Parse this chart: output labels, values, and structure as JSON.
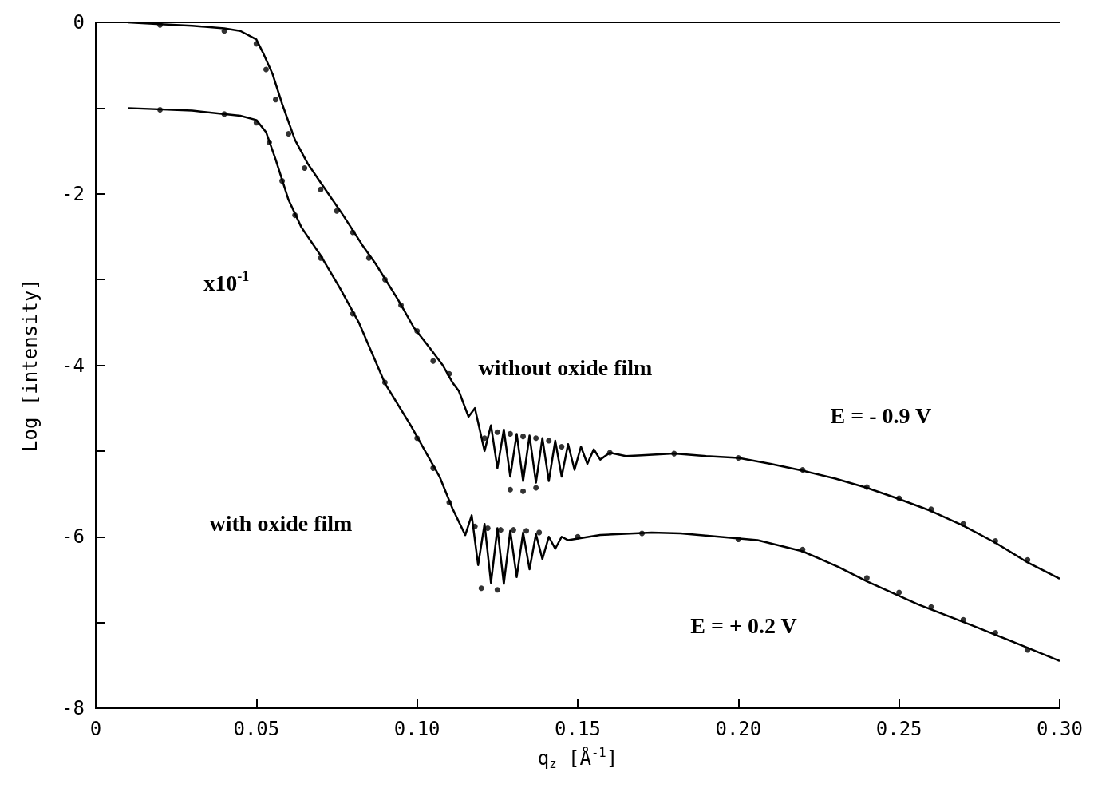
{
  "chart_data": {
    "type": "line",
    "xlabel": "q$_{z}$ [Å$^{-1}$]",
    "ylabel": "Log [intensity]",
    "xlim": [
      0,
      0.3
    ],
    "xticks": [
      0,
      0.05,
      {
        "value": 0.1,
        "label": "0.10"
      },
      0.15,
      {
        "value": 0.2,
        "label": "0.20"
      },
      0.25,
      {
        "value": 0.3,
        "label": "0.30"
      }
    ],
    "ylim": [
      -8,
      0
    ],
    "yticks": [
      -8,
      {
        "value": -7,
        "label": null
      },
      -6,
      {
        "value": -5,
        "label": null
      },
      -4,
      {
        "value": -3,
        "label": null
      },
      -2,
      {
        "value": -1,
        "label": null
      },
      0
    ],
    "grid": false,
    "line_style": "solid",
    "series": [
      {
        "marker": "none",
        "color": "#000000",
        "x": [
          0.01,
          0.02,
          0.03,
          0.04,
          0.045,
          0.05,
          0.052,
          0.055,
          0.058,
          0.062,
          0.066,
          0.07,
          0.077,
          0.083,
          0.087,
          0.094,
          0.099,
          0.104,
          0.108,
          0.111,
          0.113,
          0.116,
          0.118,
          0.121,
          0.123,
          0.125,
          0.127,
          0.129,
          0.131,
          0.133,
          0.135,
          0.137,
          0.139,
          0.141,
          0.143,
          0.145,
          0.147,
          0.149,
          0.151,
          0.153,
          0.155,
          0.157,
          0.16,
          0.165,
          0.17,
          0.18,
          0.19,
          0.2,
          0.21,
          0.22,
          0.23,
          0.24,
          0.25,
          0.26,
          0.27,
          0.28,
          0.29,
          0.3
        ],
        "values": [
          0,
          -0.02,
          -0.04,
          -0.07,
          -0.1,
          -0.2,
          -0.35,
          -0.6,
          -0.95,
          -1.37,
          -1.65,
          -1.87,
          -2.25,
          -2.6,
          -2.81,
          -3.23,
          -3.56,
          -3.8,
          -4.0,
          -4.2,
          -4.3,
          -4.6,
          -4.5,
          -5.0,
          -4.7,
          -5.2,
          -4.75,
          -5.3,
          -4.8,
          -5.35,
          -4.82,
          -5.37,
          -4.85,
          -5.35,
          -4.88,
          -5.3,
          -4.92,
          -5.22,
          -4.95,
          -5.15,
          -4.98,
          -5.1,
          -5.02,
          -5.06,
          -5.05,
          -5.03,
          -5.06,
          -5.08,
          -5.15,
          -5.23,
          -5.32,
          -5.43,
          -5.56,
          -5.7,
          -5.87,
          -6.07,
          -6.3,
          -6.49
        ]
      },
      {
        "type": "scatter",
        "marker": "circle",
        "color": "#000000",
        "x": [
          0.02,
          0.04,
          0.05,
          0.053,
          0.056,
          0.06,
          0.065,
          0.07,
          0.075,
          0.08,
          0.085,
          0.09,
          0.095,
          0.1,
          0.105,
          0.11,
          0.121,
          0.125,
          0.129,
          0.133,
          0.137,
          0.141,
          0.129,
          0.133,
          0.137,
          0.145,
          0.16,
          0.18,
          0.2,
          0.22,
          0.24,
          0.25,
          0.26,
          0.27,
          0.28,
          0.29
        ],
        "values": [
          -0.03,
          -0.1,
          -0.25,
          -0.55,
          -0.9,
          -1.3,
          -1.7,
          -1.95,
          -2.2,
          -2.45,
          -2.75,
          -3.0,
          -3.3,
          -3.6,
          -3.95,
          -4.1,
          -4.85,
          -4.78,
          -4.8,
          -4.83,
          -4.85,
          -4.88,
          -5.45,
          -5.47,
          -5.43,
          -4.95,
          -5.02,
          -5.03,
          -5.08,
          -5.22,
          -5.42,
          -5.55,
          -5.68,
          -5.85,
          -6.05,
          -6.27
        ]
      },
      {
        "marker": "none",
        "color": "#000000",
        "x": [
          0.01,
          0.03,
          0.045,
          0.05,
          0.053,
          0.056,
          0.06,
          0.064,
          0.07,
          0.076,
          0.082,
          0.09,
          0.098,
          0.107,
          0.111,
          0.115,
          0.117,
          0.119,
          0.121,
          0.123,
          0.125,
          0.127,
          0.129,
          0.131,
          0.133,
          0.135,
          0.137,
          0.139,
          0.141,
          0.143,
          0.145,
          0.147,
          0.157,
          0.173,
          0.182,
          0.194,
          0.206,
          0.22,
          0.231,
          0.24,
          0.256,
          0.2725,
          0.289,
          0.3
        ],
        "values": [
          -1.0,
          -1.03,
          -1.09,
          -1.14,
          -1.28,
          -1.6,
          -2.07,
          -2.39,
          -2.72,
          -3.1,
          -3.51,
          -4.21,
          -4.7,
          -5.3,
          -5.67,
          -5.98,
          -5.75,
          -6.33,
          -5.85,
          -6.54,
          -5.9,
          -6.55,
          -5.93,
          -6.47,
          -5.95,
          -6.38,
          -5.97,
          -6.26,
          -6.0,
          -6.14,
          -6.0,
          -6.04,
          -5.98,
          -5.95,
          -5.96,
          -6.0,
          -6.04,
          -6.17,
          -6.35,
          -6.52,
          -6.79,
          -7.03,
          -7.28,
          -7.45
        ]
      },
      {
        "type": "scatter",
        "marker": "circle",
        "color": "#000000",
        "x": [
          0.02,
          0.04,
          0.05,
          0.054,
          0.058,
          0.062,
          0.07,
          0.08,
          0.09,
          0.1,
          0.105,
          0.11,
          0.118,
          0.122,
          0.126,
          0.13,
          0.134,
          0.138,
          0.12,
          0.125,
          0.15,
          0.17,
          0.2,
          0.22,
          0.24,
          0.25,
          0.26,
          0.27,
          0.28,
          0.29
        ],
        "values": [
          -1.02,
          -1.07,
          -1.17,
          -1.4,
          -1.85,
          -2.25,
          -2.75,
          -3.4,
          -4.2,
          -4.85,
          -5.2,
          -5.6,
          -5.88,
          -5.9,
          -5.92,
          -5.92,
          -5.93,
          -5.95,
          -6.6,
          -6.62,
          -6.0,
          -5.96,
          -6.03,
          -6.15,
          -6.48,
          -6.65,
          -6.82,
          -6.97,
          -7.12,
          -7.32
        ]
      }
    ],
    "annotations": [
      "x10$^{-1}$",
      "without oxide film",
      "with oxide film",
      "E = - 0.9 V",
      "E = + 0.2 V"
    ]
  }
}
